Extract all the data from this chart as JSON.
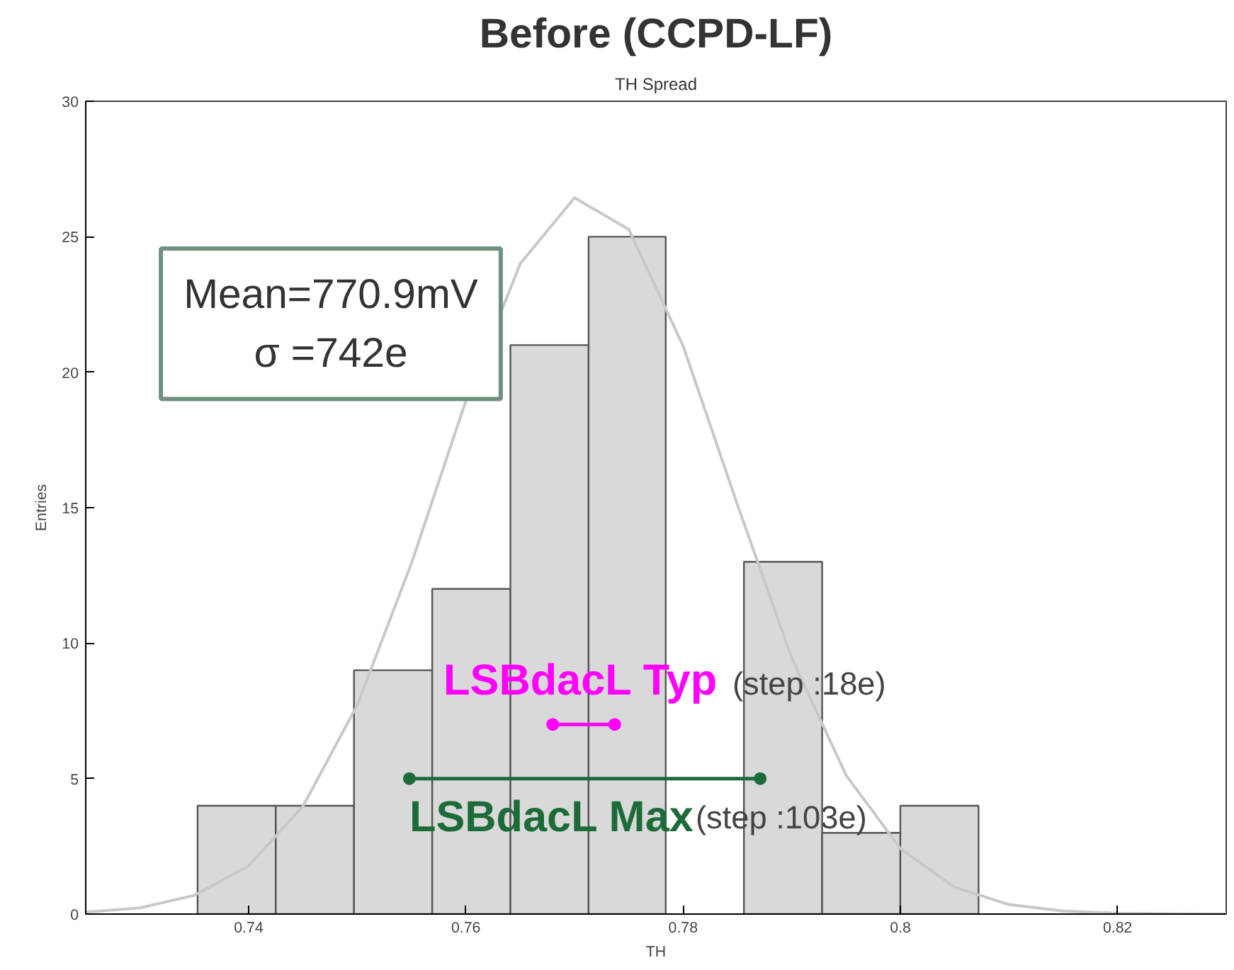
{
  "chart_data": {
    "type": "histogram",
    "title": "Before (CCPD-LF)",
    "subtitle": "TH Spread",
    "xlabel": "TH",
    "ylabel": "Entries",
    "bins": [
      0.7353,
      0.7425,
      0.7497,
      0.7569,
      0.7641,
      0.7713,
      0.7784,
      0.7856,
      0.7928,
      0.8,
      0.8072
    ],
    "values": [
      4,
      4,
      9,
      12,
      21,
      25,
      0,
      13,
      3,
      4
    ],
    "color": "#d9d9d9",
    "series": [
      {
        "type": "line",
        "color": "#c8c8c8",
        "marker": "none",
        "x": [
          0.725,
          0.73,
          0.735,
          0.74,
          0.745,
          0.75,
          0.755,
          0.76,
          0.765,
          0.77,
          0.775,
          0.78,
          0.785,
          0.79,
          0.795,
          0.8,
          0.805,
          0.81,
          0.815,
          0.82,
          0.825,
          0.83
        ],
        "values": [
          0.07,
          0.23,
          0.69,
          1.78,
          3.98,
          7.71,
          12.96,
          18.94,
          24.0,
          26.44,
          25.27,
          20.97,
          15.11,
          9.45,
          5.13,
          2.42,
          0.99,
          0.35,
          0.11,
          0.03,
          0.01,
          0
        ]
      },
      {
        "type": "line",
        "name": "LSBdacL Typ",
        "color": "#ff00ff",
        "marker": "circle",
        "x": [
          0.768,
          0.7737
        ],
        "values": [
          7,
          7
        ]
      },
      {
        "type": "line",
        "name": "LSBdacL Max",
        "color": "#1e6b3a",
        "marker": "circle",
        "x": [
          0.7548,
          0.7871
        ],
        "values": [
          5,
          5
        ]
      }
    ],
    "annotations": [
      "Mean=770.9mV\nσ =742e",
      "(step :18e)",
      "(step :103e)"
    ],
    "xlim": [
      0.725,
      0.83
    ],
    "ylim": [
      0,
      30
    ],
    "xticks": [
      0.74,
      0.76,
      0.78,
      0.8,
      0.82
    ],
    "yticks": [
      0,
      5,
      10,
      15,
      20,
      25,
      30
    ],
    "grid": false
  }
}
